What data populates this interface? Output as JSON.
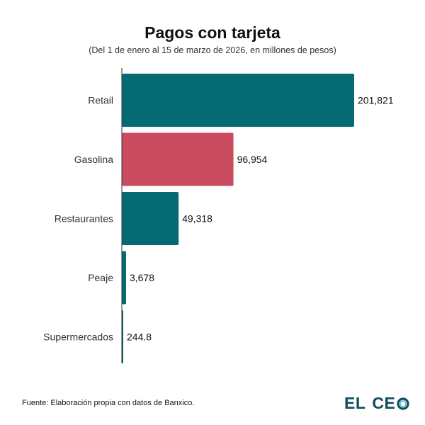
{
  "chart_data": {
    "type": "bar",
    "orientation": "horizontal",
    "title": "Pagos con tarjeta",
    "subtitle": "(Del 1 de enero al 15 de marzo de 2026, en millones de pesos)",
    "categories": [
      "Retail",
      "Gasolina",
      "Restaurantes",
      "Peaje",
      "Supermercados"
    ],
    "values": [
      201821,
      96954,
      49318,
      3678,
      244.8
    ],
    "value_labels": [
      "201,821",
      "96,954",
      "49,318",
      "3,678",
      "244.8"
    ],
    "colors": [
      "#066a73",
      "#c94b5e",
      "#066a73",
      "#066a73",
      "#066a73"
    ],
    "xlim": [
      0,
      201821
    ],
    "xlabel": "",
    "ylabel": "",
    "grid": false,
    "legend": "none"
  },
  "footer": {
    "source": "Fuente: Elaboración propia con datos de Banxico.",
    "logo_word1": "EL",
    "logo_word2": "CE",
    "logo_color": "#0f4d5e",
    "logo_o_icon": "ring-icon"
  }
}
